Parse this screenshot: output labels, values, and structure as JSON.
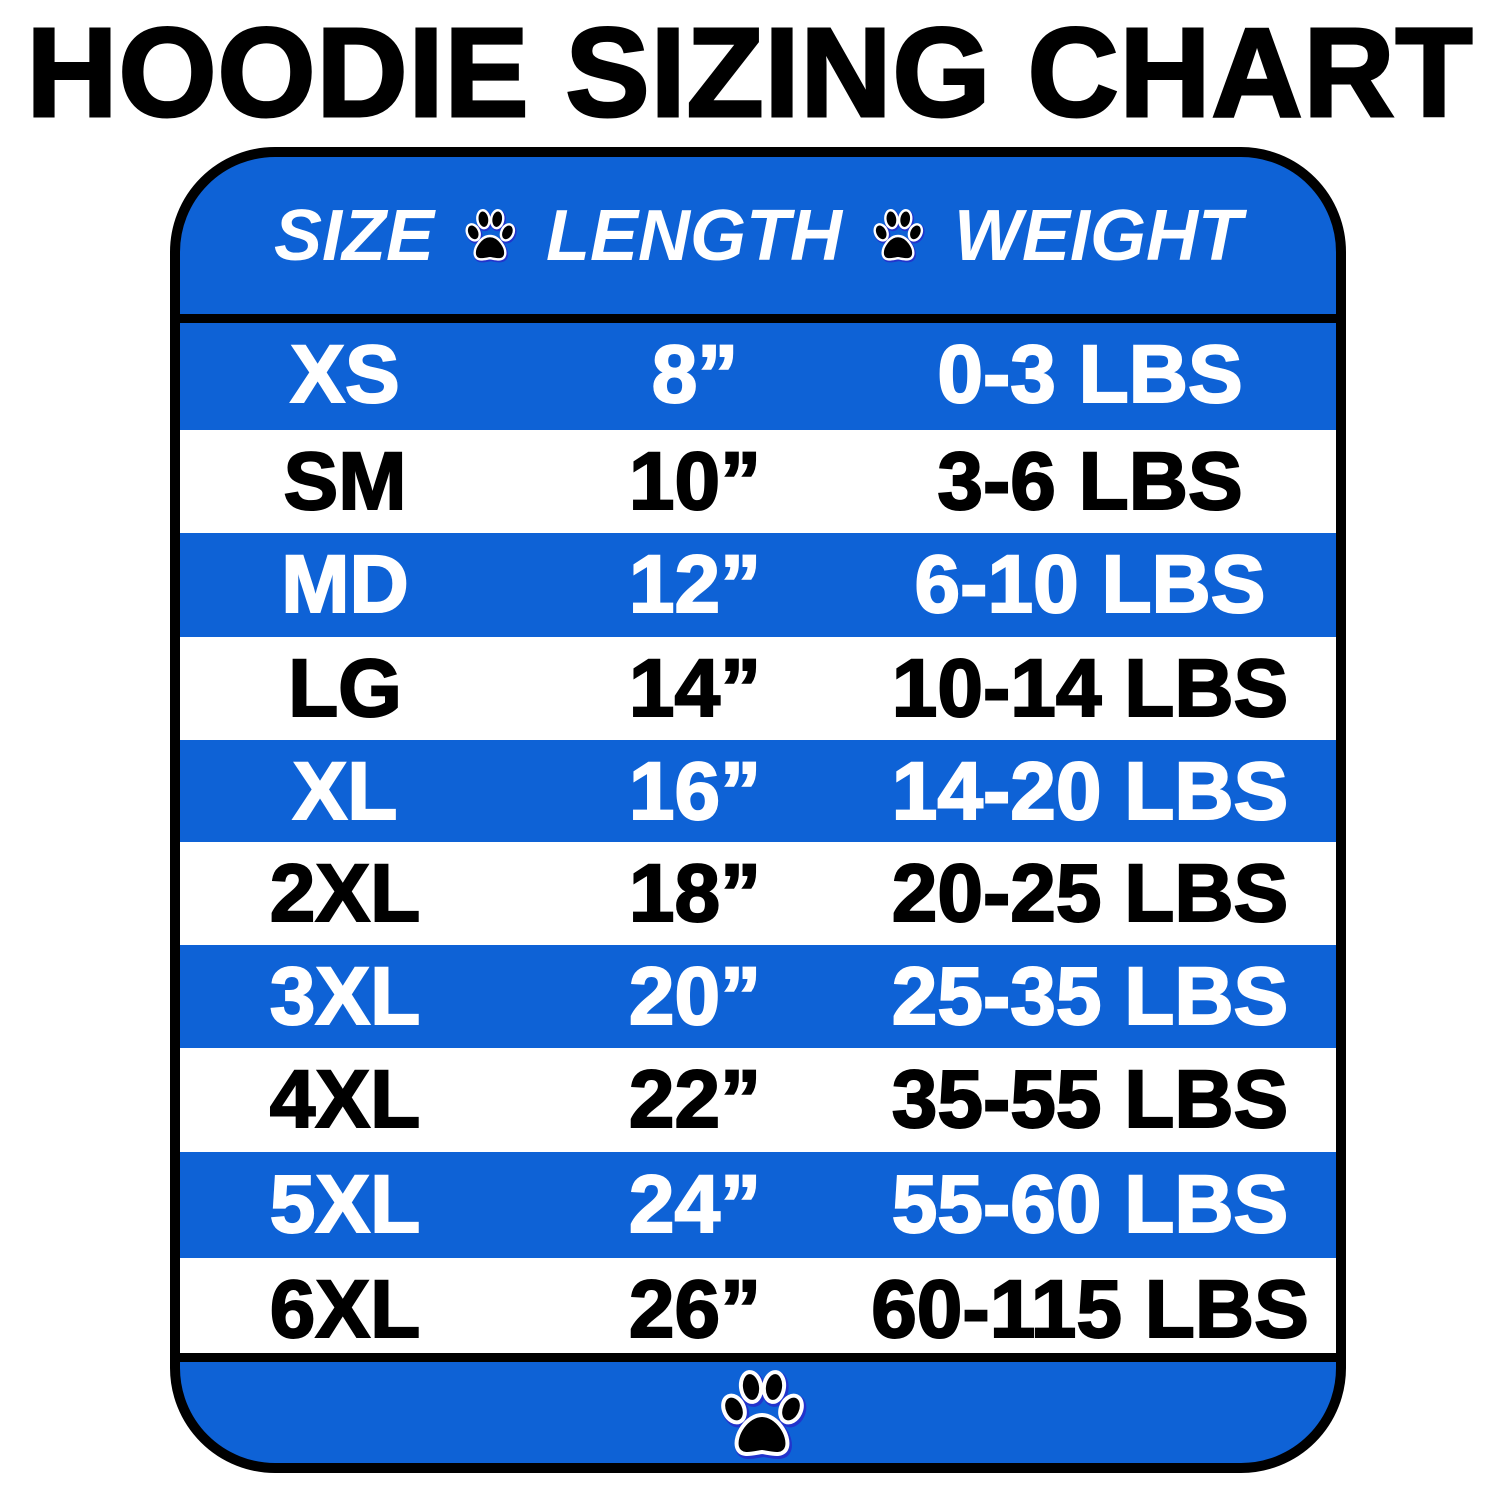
{
  "title": "HOODIE SIZING CHART",
  "colors": {
    "accent": "#0e62d6",
    "text_dark": "#000000",
    "text_light": "#ffffff"
  },
  "table": {
    "headers": [
      "SIZE",
      "LENGTH",
      "WEIGHT"
    ],
    "separator_icon": "paw-print-icon",
    "rows": [
      {
        "size": "XS",
        "length": "8”",
        "weight": "0-3 LBS",
        "style": "blue"
      },
      {
        "size": "SM",
        "length": "10”",
        "weight": "3-6 LBS",
        "style": "white"
      },
      {
        "size": "MD",
        "length": "12”",
        "weight": "6-10 LBS",
        "style": "blue"
      },
      {
        "size": "LG",
        "length": "14”",
        "weight": "10-14 LBS",
        "style": "white"
      },
      {
        "size": "XL",
        "length": "16”",
        "weight": "14-20 LBS",
        "style": "blue"
      },
      {
        "size": "2XL",
        "length": "18”",
        "weight": "20-25 LBS",
        "style": "white"
      },
      {
        "size": "3XL",
        "length": "20”",
        "weight": "25-35 LBS",
        "style": "blue"
      },
      {
        "size": "4XL",
        "length": "22”",
        "weight": "35-55 LBS",
        "style": "white"
      },
      {
        "size": "5XL",
        "length": "24”",
        "weight": "55-60 LBS",
        "style": "blue"
      },
      {
        "size": "6XL",
        "length": "26”",
        "weight": "60-115 LBS",
        "style": "white"
      }
    ],
    "footer_icon": "paw-print-icon"
  }
}
